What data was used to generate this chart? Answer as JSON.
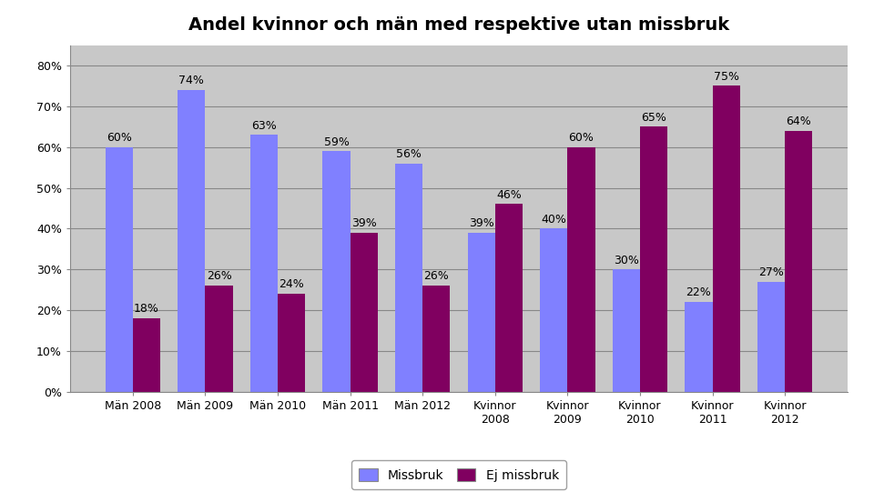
{
  "title": "Andel kvinnor och män med respektive utan missbruk",
  "categories": [
    "Män 2008",
    "Män 2009",
    "Män 2010",
    "Män 2011",
    "Män 2012",
    "Kvinnor\n2008",
    "Kvinnor\n2009",
    "Kvinnor\n2010",
    "Kvinnor\n2011",
    "Kvinnor\n2012"
  ],
  "missbruk": [
    60,
    74,
    63,
    59,
    56,
    39,
    40,
    30,
    22,
    27
  ],
  "ej_missbruk": [
    18,
    26,
    24,
    39,
    26,
    46,
    60,
    65,
    75,
    64
  ],
  "missbruk_labels": [
    "60%",
    "74%",
    "63%",
    "59%",
    "56%",
    "39%",
    "40%",
    "30%",
    "22%",
    "27%"
  ],
  "ej_missbruk_labels": [
    "18%",
    "26%",
    "24%",
    "39%",
    "26%",
    "46%",
    "60%",
    "65%",
    "75%",
    "64%"
  ],
  "bar_color_missbruk": "#8080FF",
  "bar_color_ej_missbruk": "#800060",
  "background_color": "#C8C8C8",
  "fig_background": "#FFFFFF",
  "ylim_max": 85,
  "yticks": [
    0,
    10,
    20,
    30,
    40,
    50,
    60,
    70,
    80
  ],
  "ytick_labels": [
    "0%",
    "10%",
    "20%",
    "30%",
    "40%",
    "50%",
    "60%",
    "70%",
    "80%"
  ],
  "legend_missbruk": "Missbruk",
  "legend_ej_missbruk": "Ej missbruk",
  "title_fontsize": 14,
  "label_fontsize": 9,
  "tick_fontsize": 9,
  "bar_width": 0.38
}
